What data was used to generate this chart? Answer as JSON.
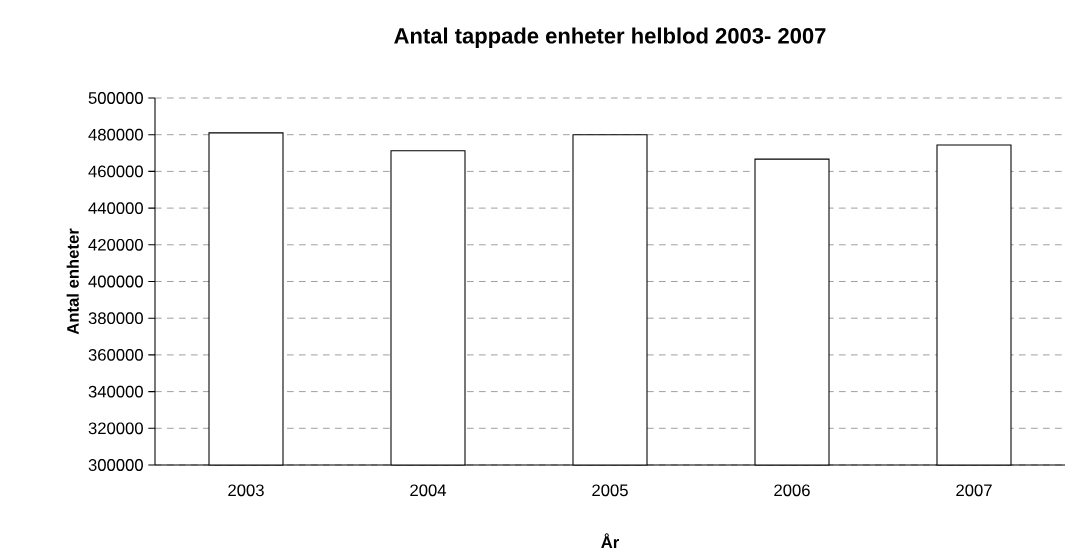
{
  "chart_data": {
    "type": "bar",
    "title": "Antal tappade enheter helblod 2003- 2007",
    "xlabel": "År",
    "ylabel": "Antal enheter",
    "categories": [
      "2003",
      "2004",
      "2005",
      "2006",
      "2007"
    ],
    "values": [
      481000,
      471300,
      480000,
      466700,
      474400
    ],
    "color": "#ffffff",
    "ylim": [
      300000,
      500000
    ],
    "yticks": [
      300000,
      320000,
      340000,
      360000,
      380000,
      400000,
      420000,
      440000,
      460000,
      480000,
      500000
    ],
    "grid": "y"
  }
}
